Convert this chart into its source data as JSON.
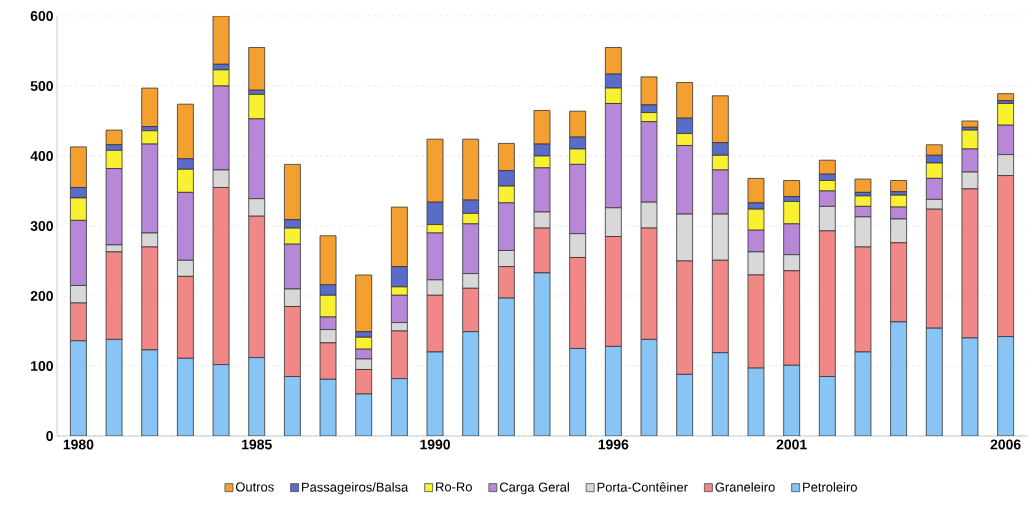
{
  "chart_data": {
    "type": "bar",
    "stacked": true,
    "categories": [
      "1980",
      null,
      null,
      null,
      null,
      "1985",
      null,
      null,
      null,
      null,
      "1990",
      null,
      null,
      null,
      null,
      "1996",
      null,
      null,
      null,
      null,
      "2001",
      null,
      null,
      null,
      null,
      null,
      "2006"
    ],
    "series": [
      {
        "name": "Petroleiro",
        "color": "#88c4f4",
        "values": [
          136,
          138,
          123,
          111,
          102,
          112,
          85,
          81,
          60,
          82,
          120,
          149,
          197,
          233,
          125,
          128,
          138,
          88,
          119,
          97,
          101,
          85,
          120,
          163,
          154,
          140,
          142
        ]
      },
      {
        "name": "Graneleiro",
        "color": "#f08888",
        "values": [
          54,
          125,
          147,
          117,
          253,
          202,
          100,
          52,
          35,
          68,
          81,
          62,
          45,
          64,
          130,
          157,
          159,
          162,
          132,
          133,
          135,
          208,
          150,
          113,
          170,
          213,
          230
        ]
      },
      {
        "name": "Porta-Contêiner",
        "color": "#d8d8d8",
        "values": [
          25,
          10,
          20,
          23,
          25,
          25,
          25,
          19,
          15,
          12,
          22,
          21,
          23,
          23,
          34,
          41,
          37,
          67,
          66,
          33,
          23,
          35,
          43,
          34,
          14,
          24,
          30
        ]
      },
      {
        "name": "Carga Geral",
        "color": "#b888d8",
        "values": [
          93,
          109,
          127,
          97,
          120,
          114,
          64,
          18,
          14,
          39,
          67,
          71,
          68,
          63,
          99,
          149,
          115,
          98,
          63,
          31,
          44,
          22,
          15,
          17,
          30,
          33,
          42
        ]
      },
      {
        "name": "Ro-Ro",
        "color": "#f8f030",
        "values": [
          32,
          26,
          19,
          33,
          23,
          35,
          23,
          31,
          17,
          12,
          12,
          15,
          24,
          17,
          22,
          22,
          13,
          17,
          21,
          30,
          32,
          15,
          15,
          17,
          22,
          27,
          31
        ]
      },
      {
        "name": "Passageiros/Balsa",
        "color": "#5b6bc8",
        "values": [
          15,
          8,
          6,
          15,
          8,
          6,
          12,
          15,
          8,
          29,
          32,
          19,
          22,
          17,
          17,
          20,
          11,
          22,
          18,
          9,
          7,
          9,
          5,
          5,
          11,
          4,
          4
        ]
      },
      {
        "name": "Outros",
        "color": "#f4a030",
        "values": [
          58,
          21,
          55,
          78,
          69,
          61,
          79,
          70,
          81,
          85,
          90,
          87,
          39,
          48,
          37,
          38,
          40,
          51,
          67,
          35,
          23,
          20,
          19,
          16,
          15,
          9,
          10
        ]
      }
    ],
    "ylim": [
      0,
      600
    ],
    "yticks": [
      0,
      100,
      200,
      300,
      400,
      500,
      600
    ],
    "grid": "y",
    "legend": "bottom"
  }
}
